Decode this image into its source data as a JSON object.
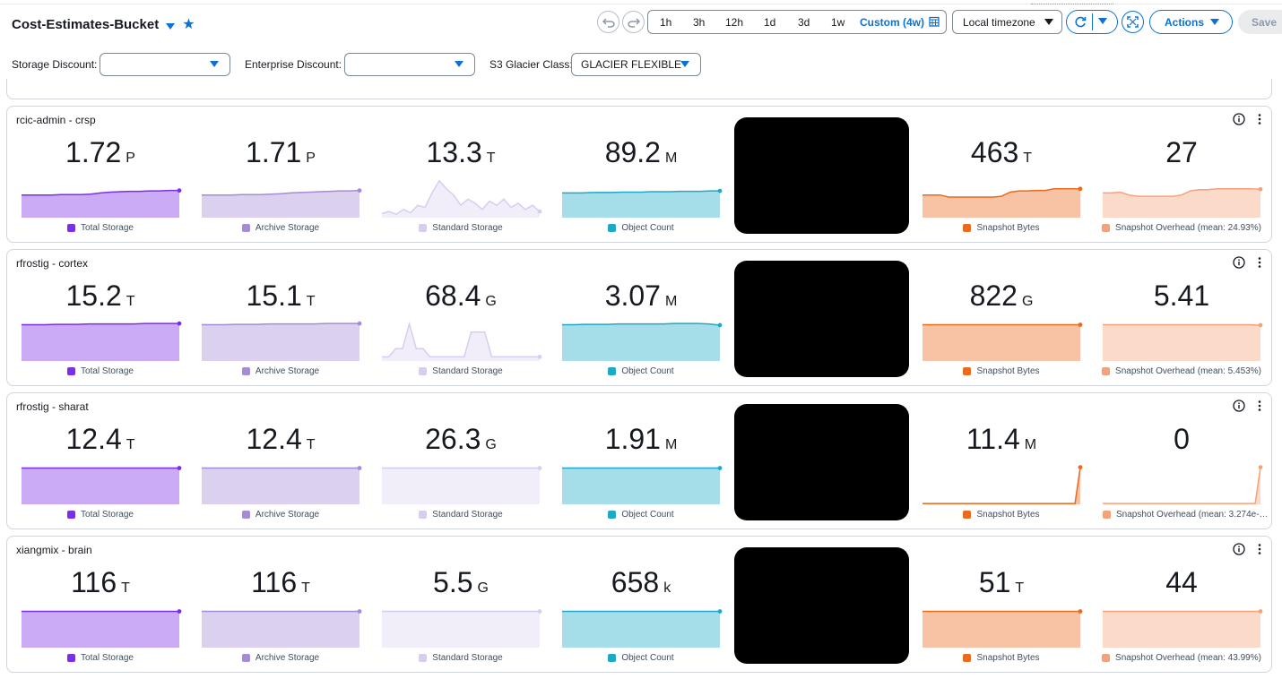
{
  "header": {
    "title": "Cost-Estimates-Bucket",
    "time_ranges": [
      {
        "label": "1h",
        "active": false
      },
      {
        "label": "3h",
        "active": false
      },
      {
        "label": "12h",
        "active": false
      },
      {
        "label": "1d",
        "active": false
      },
      {
        "label": "3d",
        "active": false
      },
      {
        "label": "1w",
        "active": false
      },
      {
        "label": "Custom (4w)",
        "active": true
      }
    ],
    "timezone": "Local timezone",
    "actions_label": "Actions",
    "save_label": "Save"
  },
  "filters": [
    {
      "label": "Storage Discount:",
      "value": ""
    },
    {
      "label": "Enterprise Discount:",
      "value": ""
    },
    {
      "label": "S3 Glacier Class:",
      "value": "GLACIER FLEXIBLE"
    }
  ],
  "colors": {
    "accent": "#0972d3",
    "total_storage": "#7d2ee8",
    "archive_storage": "#a68bd6",
    "standard_storage": "#d7cdee",
    "object_count": "#1ea9c8",
    "snapshot_bytes": "#ec6a1b",
    "snapshot_overhead": "#f5a27a"
  },
  "panels": [
    {
      "title": "rcic-admin - crsp",
      "stats": [
        {
          "value": "1.72",
          "unit": "P",
          "label": "Total Storage",
          "series": "total_storage",
          "trend": [
            0.55,
            0.55,
            0.55,
            0.55,
            0.56,
            0.56,
            0.56,
            0.57,
            0.6,
            0.62,
            0.63,
            0.64,
            0.64,
            0.65,
            0.65,
            0.66,
            0.66
          ]
        },
        {
          "value": "1.71",
          "unit": "P",
          "label": "Archive Storage",
          "series": "archive_storage",
          "trend": [
            0.55,
            0.55,
            0.55,
            0.55,
            0.56,
            0.56,
            0.56,
            0.57,
            0.58,
            0.6,
            0.61,
            0.62,
            0.63,
            0.64,
            0.65,
            0.65,
            0.66
          ]
        },
        {
          "value": "13.3",
          "unit": "T",
          "label": "Standard Storage",
          "series": "standard_storage",
          "trend": [
            0.1,
            0.15,
            0.08,
            0.2,
            0.12,
            0.3,
            0.25,
            0.6,
            0.9,
            0.7,
            0.55,
            0.3,
            0.45,
            0.35,
            0.2,
            0.4,
            0.3,
            0.45,
            0.25,
            0.35,
            0.2,
            0.3,
            0.15
          ]
        },
        {
          "value": "89.2",
          "unit": "M",
          "label": "Object Count",
          "series": "object_count",
          "trend": [
            0.6,
            0.6,
            0.6,
            0.61,
            0.61,
            0.61,
            0.62,
            0.62,
            0.62,
            0.63,
            0.63,
            0.63,
            0.64,
            0.64,
            0.64,
            0.65,
            0.65
          ]
        },
        {
          "value": "463",
          "unit": "T",
          "label": "Snapshot Bytes",
          "series": "snapshot_bytes",
          "trend": [
            0.55,
            0.55,
            0.55,
            0.5,
            0.5,
            0.5,
            0.5,
            0.5,
            0.5,
            0.52,
            0.62,
            0.65,
            0.65,
            0.66,
            0.66,
            0.7,
            0.7,
            0.7,
            0.7
          ]
        },
        {
          "value": "27",
          "unit": "",
          "label": "Snapshot Overhead (mean: 24.93%)",
          "series": "snapshot_overhead",
          "trend": [
            0.6,
            0.6,
            0.62,
            0.55,
            0.52,
            0.52,
            0.52,
            0.52,
            0.52,
            0.55,
            0.65,
            0.68,
            0.68,
            0.7,
            0.7,
            0.7,
            0.7,
            0.7,
            0.69
          ]
        }
      ]
    },
    {
      "title": "rfrostig - cortex",
      "stats": [
        {
          "value": "15.2",
          "unit": "T",
          "label": "Total Storage",
          "series": "total_storage",
          "trend": [
            0.88,
            0.88,
            0.88,
            0.89,
            0.89,
            0.89,
            0.9,
            0.9,
            0.9,
            0.9,
            0.9,
            0.91,
            0.91,
            0.91,
            0.91
          ]
        },
        {
          "value": "15.1",
          "unit": "T",
          "label": "Archive Storage",
          "series": "archive_storage",
          "trend": [
            0.88,
            0.88,
            0.88,
            0.89,
            0.89,
            0.89,
            0.9,
            0.9,
            0.9,
            0.9,
            0.9,
            0.91,
            0.91,
            0.91,
            0.91
          ]
        },
        {
          "value": "68.4",
          "unit": "G",
          "label": "Standard Storage",
          "series": "standard_storage",
          "trend": [
            0.1,
            0.1,
            0.3,
            0.3,
            0.9,
            0.3,
            0.3,
            0.1,
            0.1,
            0.1,
            0.1,
            0.1,
            0.1,
            0.7,
            0.7,
            0.7,
            0.1,
            0.1,
            0.1,
            0.1,
            0.1,
            0.1,
            0.1,
            0.1
          ]
        },
        {
          "value": "3.07",
          "unit": "M",
          "label": "Object Count",
          "series": "object_count",
          "trend": [
            0.88,
            0.88,
            0.89,
            0.89,
            0.89,
            0.9,
            0.9,
            0.9,
            0.9,
            0.9,
            0.91,
            0.91,
            0.91,
            0.9,
            0.87
          ]
        },
        {
          "value": "822",
          "unit": "G",
          "label": "Snapshot Bytes",
          "series": "snapshot_bytes",
          "trend": [
            0.88,
            0.88,
            0.88,
            0.88,
            0.88,
            0.88,
            0.88,
            0.88,
            0.88,
            0.88,
            0.88,
            0.88,
            0.88,
            0.88,
            0.88
          ]
        },
        {
          "value": "5.41",
          "unit": "",
          "label": "Snapshot Overhead (mean: 5.453%)",
          "series": "snapshot_overhead",
          "trend": [
            0.88,
            0.88,
            0.88,
            0.88,
            0.88,
            0.88,
            0.88,
            0.88,
            0.88,
            0.88,
            0.88,
            0.88,
            0.88,
            0.88,
            0.87
          ]
        }
      ]
    },
    {
      "title": "rfrostig - sharat",
      "stats": [
        {
          "value": "12.4",
          "unit": "T",
          "label": "Total Storage",
          "series": "total_storage",
          "trend": [
            0.88,
            0.88,
            0.88,
            0.88,
            0.88,
            0.88,
            0.88,
            0.88,
            0.88,
            0.88,
            0.88,
            0.88,
            0.88,
            0.88,
            0.88
          ]
        },
        {
          "value": "12.4",
          "unit": "T",
          "label": "Archive Storage",
          "series": "archive_storage",
          "trend": [
            0.88,
            0.88,
            0.88,
            0.88,
            0.88,
            0.88,
            0.88,
            0.88,
            0.88,
            0.88,
            0.88,
            0.88,
            0.88,
            0.88,
            0.88
          ]
        },
        {
          "value": "26.3",
          "unit": "G",
          "label": "Standard Storage",
          "series": "standard_storage",
          "trend": [
            0.88,
            0.88,
            0.88,
            0.88,
            0.88,
            0.88,
            0.88,
            0.88,
            0.88,
            0.88,
            0.88,
            0.88,
            0.88,
            0.88,
            0.88
          ]
        },
        {
          "value": "1.91",
          "unit": "M",
          "label": "Object Count",
          "series": "object_count",
          "trend": [
            0.88,
            0.88,
            0.88,
            0.88,
            0.88,
            0.88,
            0.88,
            0.88,
            0.88,
            0.88,
            0.88,
            0.88,
            0.88,
            0.88,
            0.88
          ]
        },
        {
          "value": "11.4",
          "unit": "M",
          "label": "Snapshot Bytes",
          "series": "snapshot_bytes",
          "trend": [
            0.02,
            0.02,
            0.02,
            0.02,
            0.02,
            0.02,
            0.02,
            0.02,
            0.02,
            0.02,
            0.02,
            0.02,
            0.02,
            0.02,
            0.02,
            0.02,
            0.02,
            0.02,
            0.02,
            0.02,
            0.02,
            0.02,
            0.02,
            0.02,
            0.02,
            0.02,
            0.02,
            0.02,
            0.02,
            0.02,
            0.9
          ]
        },
        {
          "value": "0",
          "unit": "",
          "label": "Snapshot Overhead (mean: 3.274e-…",
          "series": "snapshot_overhead",
          "trend": [
            0.02,
            0.02,
            0.02,
            0.02,
            0.02,
            0.02,
            0.02,
            0.02,
            0.02,
            0.02,
            0.02,
            0.02,
            0.02,
            0.02,
            0.02,
            0.02,
            0.02,
            0.02,
            0.02,
            0.02,
            0.02,
            0.02,
            0.02,
            0.02,
            0.02,
            0.02,
            0.02,
            0.02,
            0.02,
            0.02,
            0.9
          ],
          "wide_legend": true
        }
      ]
    },
    {
      "title": "xiangmix - brain",
      "stats": [
        {
          "value": "116",
          "unit": "T",
          "label": "Total Storage",
          "series": "total_storage",
          "trend": [
            0.88,
            0.88,
            0.88,
            0.88,
            0.88,
            0.88,
            0.88,
            0.88,
            0.88,
            0.88,
            0.88,
            0.88,
            0.88,
            0.88,
            0.88
          ]
        },
        {
          "value": "116",
          "unit": "T",
          "label": "Archive Storage",
          "series": "archive_storage",
          "trend": [
            0.88,
            0.88,
            0.88,
            0.88,
            0.88,
            0.88,
            0.88,
            0.88,
            0.88,
            0.88,
            0.88,
            0.88,
            0.88,
            0.88,
            0.88
          ]
        },
        {
          "value": "5.5",
          "unit": "G",
          "label": "Standard Storage",
          "series": "standard_storage",
          "trend": [
            0.88,
            0.88,
            0.88,
            0.88,
            0.88,
            0.88,
            0.88,
            0.88,
            0.88,
            0.88,
            0.88,
            0.88,
            0.88,
            0.88,
            0.88
          ]
        },
        {
          "value": "658",
          "unit": "k",
          "label": "Object Count",
          "series": "object_count",
          "trend": [
            0.88,
            0.88,
            0.88,
            0.88,
            0.88,
            0.88,
            0.88,
            0.88,
            0.88,
            0.88,
            0.88,
            0.88,
            0.88,
            0.88,
            0.88
          ]
        },
        {
          "value": "51",
          "unit": "T",
          "label": "Snapshot Bytes",
          "series": "snapshot_bytes",
          "trend": [
            0.88,
            0.88,
            0.88,
            0.88,
            0.88,
            0.88,
            0.88,
            0.88,
            0.88,
            0.88,
            0.88,
            0.88,
            0.88,
            0.88,
            0.88
          ]
        },
        {
          "value": "44",
          "unit": "",
          "label": "Snapshot Overhead (mean: 43.99%)",
          "series": "snapshot_overhead",
          "trend": [
            0.88,
            0.88,
            0.88,
            0.88,
            0.88,
            0.88,
            0.88,
            0.88,
            0.88,
            0.88,
            0.88,
            0.88,
            0.88,
            0.88,
            0.88
          ]
        }
      ]
    }
  ]
}
